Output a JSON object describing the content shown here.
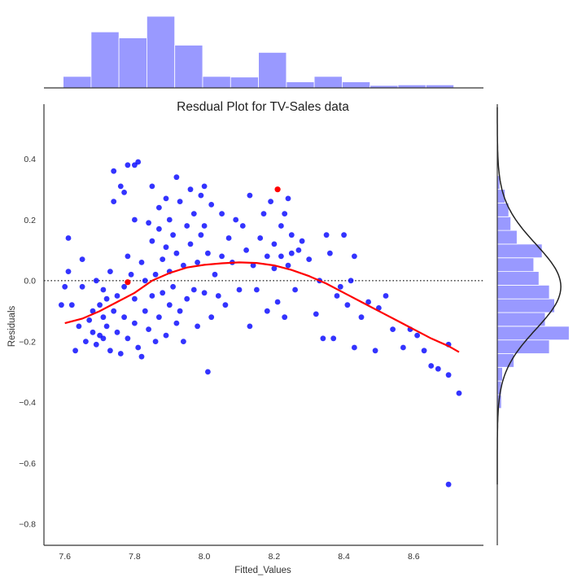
{
  "chart_data": {
    "type": "scatter",
    "title": "Resdual Plot for TV-Sales data",
    "xlabel": "Fitted_Values",
    "ylabel": "Residuals",
    "xlim": [
      7.54,
      8.8
    ],
    "ylim": [
      -0.87,
      0.58
    ],
    "x_ticks": [
      "7.6",
      "7.8",
      "8.0",
      "8.2",
      "8.4",
      "8.6"
    ],
    "y_ticks": [
      "0.4",
      "0.2",
      "0.0",
      "−0.2",
      "−0.4",
      "−0.6",
      "−0.8"
    ],
    "grid": false,
    "reference_line_y": 0.0,
    "colors": {
      "points": "#0000ff",
      "lowess": "#ff0000",
      "histogram": "#9999ff",
      "kde": "#222222",
      "axis": "#333333"
    },
    "series": [
      {
        "kind": "scatter",
        "points": [
          [
            7.59,
            -0.08
          ],
          [
            7.6,
            -0.02
          ],
          [
            7.61,
            0.14
          ],
          [
            7.61,
            0.03
          ],
          [
            7.62,
            -0.08
          ],
          [
            7.63,
            -0.23
          ],
          [
            7.64,
            -0.15
          ],
          [
            7.65,
            -0.02
          ],
          [
            7.65,
            0.07
          ],
          [
            7.66,
            -0.2
          ],
          [
            7.67,
            -0.13
          ],
          [
            7.68,
            -0.1
          ],
          [
            7.68,
            -0.17
          ],
          [
            7.69,
            -0.21
          ],
          [
            7.69,
            0.0
          ],
          [
            7.7,
            -0.08
          ],
          [
            7.7,
            -0.18
          ],
          [
            7.71,
            -0.03
          ],
          [
            7.71,
            -0.12
          ],
          [
            7.71,
            -0.19
          ],
          [
            7.72,
            -0.06
          ],
          [
            7.72,
            -0.15
          ],
          [
            7.73,
            -0.23
          ],
          [
            7.73,
            0.03
          ],
          [
            7.74,
            -0.1
          ],
          [
            7.74,
            0.36
          ],
          [
            7.74,
            0.26
          ],
          [
            7.75,
            -0.05
          ],
          [
            7.75,
            -0.17
          ],
          [
            7.76,
            -0.24
          ],
          [
            7.76,
            0.31
          ],
          [
            7.77,
            -0.02
          ],
          [
            7.77,
            -0.12
          ],
          [
            7.77,
            0.29
          ],
          [
            7.78,
            0.08
          ],
          [
            7.78,
            -0.19
          ],
          [
            7.78,
            0.38
          ],
          [
            7.79,
            0.02
          ],
          [
            7.8,
            -0.06
          ],
          [
            7.8,
            -0.14
          ],
          [
            7.8,
            0.2
          ],
          [
            7.8,
            0.38
          ],
          [
            7.81,
            0.39
          ],
          [
            7.81,
            -0.22
          ],
          [
            7.82,
            -0.25
          ],
          [
            7.82,
            0.06
          ],
          [
            7.83,
            0.0
          ],
          [
            7.83,
            -0.1
          ],
          [
            7.84,
            0.19
          ],
          [
            7.84,
            -0.16
          ],
          [
            7.85,
            0.13
          ],
          [
            7.85,
            -0.05
          ],
          [
            7.85,
            0.31
          ],
          [
            7.86,
            0.02
          ],
          [
            7.86,
            -0.2
          ],
          [
            7.87,
            0.17
          ],
          [
            7.87,
            -0.12
          ],
          [
            7.87,
            0.24
          ],
          [
            7.88,
            0.07
          ],
          [
            7.88,
            -0.04
          ],
          [
            7.89,
            0.11
          ],
          [
            7.89,
            -0.18
          ],
          [
            7.89,
            0.27
          ],
          [
            7.9,
            0.03
          ],
          [
            7.9,
            -0.08
          ],
          [
            7.9,
            0.2
          ],
          [
            7.91,
            -0.02
          ],
          [
            7.91,
            0.15
          ],
          [
            7.92,
            -0.14
          ],
          [
            7.92,
            0.09
          ],
          [
            7.92,
            0.34
          ],
          [
            7.93,
            -0.1
          ],
          [
            7.93,
            0.26
          ],
          [
            7.94,
            0.05
          ],
          [
            7.94,
            -0.2
          ],
          [
            7.95,
            0.18
          ],
          [
            7.95,
            -0.06
          ],
          [
            7.96,
            0.12
          ],
          [
            7.96,
            0.3
          ],
          [
            7.97,
            -0.03
          ],
          [
            7.97,
            0.22
          ],
          [
            7.98,
            0.06
          ],
          [
            7.98,
            -0.15
          ],
          [
            7.99,
            0.28
          ],
          [
            7.99,
            0.15
          ],
          [
            8.0,
            0.31
          ],
          [
            8.0,
            -0.04
          ],
          [
            8.0,
            0.18
          ],
          [
            8.01,
            0.09
          ],
          [
            8.01,
            -0.3
          ],
          [
            8.02,
            -0.12
          ],
          [
            8.02,
            0.25
          ],
          [
            8.03,
            0.02
          ],
          [
            8.04,
            -0.05
          ],
          [
            8.05,
            0.08
          ],
          [
            8.05,
            0.22
          ],
          [
            8.06,
            -0.08
          ],
          [
            8.07,
            0.14
          ],
          [
            8.08,
            0.06
          ],
          [
            8.09,
            0.2
          ],
          [
            8.1,
            -0.03
          ],
          [
            8.11,
            0.18
          ],
          [
            8.12,
            0.1
          ],
          [
            8.13,
            0.28
          ],
          [
            8.13,
            -0.15
          ],
          [
            8.14,
            0.05
          ],
          [
            8.15,
            -0.03
          ],
          [
            8.16,
            0.14
          ],
          [
            8.17,
            0.22
          ],
          [
            8.18,
            -0.1
          ],
          [
            8.18,
            0.08
          ],
          [
            8.19,
            0.26
          ],
          [
            8.2,
            0.12
          ],
          [
            8.2,
            0.04
          ],
          [
            8.21,
            -0.07
          ],
          [
            8.22,
            0.18
          ],
          [
            8.22,
            0.08
          ],
          [
            8.23,
            -0.12
          ],
          [
            8.23,
            0.22
          ],
          [
            8.24,
            0.27
          ],
          [
            8.24,
            0.05
          ],
          [
            8.25,
            0.09
          ],
          [
            8.25,
            0.15
          ],
          [
            8.26,
            -0.03
          ],
          [
            8.27,
            0.1
          ],
          [
            8.28,
            0.13
          ],
          [
            8.3,
            0.07
          ],
          [
            8.32,
            -0.11
          ],
          [
            8.33,
            0.0
          ],
          [
            8.34,
            -0.19
          ],
          [
            8.35,
            0.15
          ],
          [
            8.36,
            0.09
          ],
          [
            8.37,
            -0.19
          ],
          [
            8.38,
            -0.05
          ],
          [
            8.39,
            -0.02
          ],
          [
            8.4,
            0.15
          ],
          [
            8.41,
            -0.08
          ],
          [
            8.42,
            0.0
          ],
          [
            8.43,
            -0.22
          ],
          [
            8.43,
            0.08
          ],
          [
            8.45,
            -0.12
          ],
          [
            8.47,
            -0.07
          ],
          [
            8.49,
            -0.23
          ],
          [
            8.5,
            -0.09
          ],
          [
            8.52,
            -0.05
          ],
          [
            8.54,
            -0.16
          ],
          [
            8.57,
            -0.22
          ],
          [
            8.59,
            -0.16
          ],
          [
            8.61,
            -0.18
          ],
          [
            8.63,
            -0.23
          ],
          [
            8.65,
            -0.28
          ],
          [
            8.67,
            -0.29
          ],
          [
            8.7,
            -0.21
          ],
          [
            8.7,
            -0.31
          ],
          [
            8.7,
            -0.67
          ],
          [
            8.73,
            -0.37
          ]
        ]
      },
      {
        "kind": "highlighted",
        "points": [
          [
            7.78,
            -0.005
          ],
          [
            8.21,
            0.3
          ]
        ]
      },
      {
        "kind": "lowess",
        "points": [
          [
            7.6,
            -0.14
          ],
          [
            7.65,
            -0.125
          ],
          [
            7.7,
            -0.1
          ],
          [
            7.75,
            -0.07
          ],
          [
            7.8,
            -0.04
          ],
          [
            7.85,
            0.0
          ],
          [
            7.9,
            0.025
          ],
          [
            7.95,
            0.043
          ],
          [
            8.0,
            0.052
          ],
          [
            8.05,
            0.057
          ],
          [
            8.1,
            0.06
          ],
          [
            8.15,
            0.058
          ],
          [
            8.2,
            0.05
          ],
          [
            8.25,
            0.035
          ],
          [
            8.3,
            0.015
          ],
          [
            8.35,
            -0.01
          ],
          [
            8.4,
            -0.04
          ],
          [
            8.45,
            -0.07
          ],
          [
            8.5,
            -0.1
          ],
          [
            8.55,
            -0.13
          ],
          [
            8.6,
            -0.16
          ],
          [
            8.65,
            -0.19
          ],
          [
            8.7,
            -0.215
          ],
          [
            8.73,
            -0.235
          ]
        ]
      }
    ],
    "top_histogram": {
      "bin_edges": [
        7.595,
        7.675,
        7.755,
        7.835,
        7.915,
        7.995,
        8.075,
        8.155,
        8.235,
        8.315,
        8.395,
        8.475,
        8.555,
        8.635,
        8.715
      ],
      "heights": [
        0.19,
        0.93,
        0.83,
        1.19,
        0.71,
        0.19,
        0.18,
        0.59,
        0.1,
        0.19,
        0.1,
        0.04,
        0.05,
        0.05
      ]
    },
    "right_histogram": {
      "bin_edges": [
        -0.42,
        -0.375,
        -0.33,
        -0.285,
        -0.24,
        -0.195,
        -0.15,
        -0.105,
        -0.06,
        -0.015,
        0.03,
        0.075,
        0.12,
        0.165,
        0.21,
        0.255,
        0.3,
        0.345
      ],
      "heights": [
        0.08,
        0.08,
        0.1,
        0.32,
        1.0,
        1.38,
        0.92,
        1.1,
        1.0,
        0.8,
        0.7,
        0.86,
        0.38,
        0.26,
        0.22,
        0.15,
        0.05
      ]
    },
    "kde": {
      "mean": -0.02,
      "sd": 0.14
    }
  }
}
